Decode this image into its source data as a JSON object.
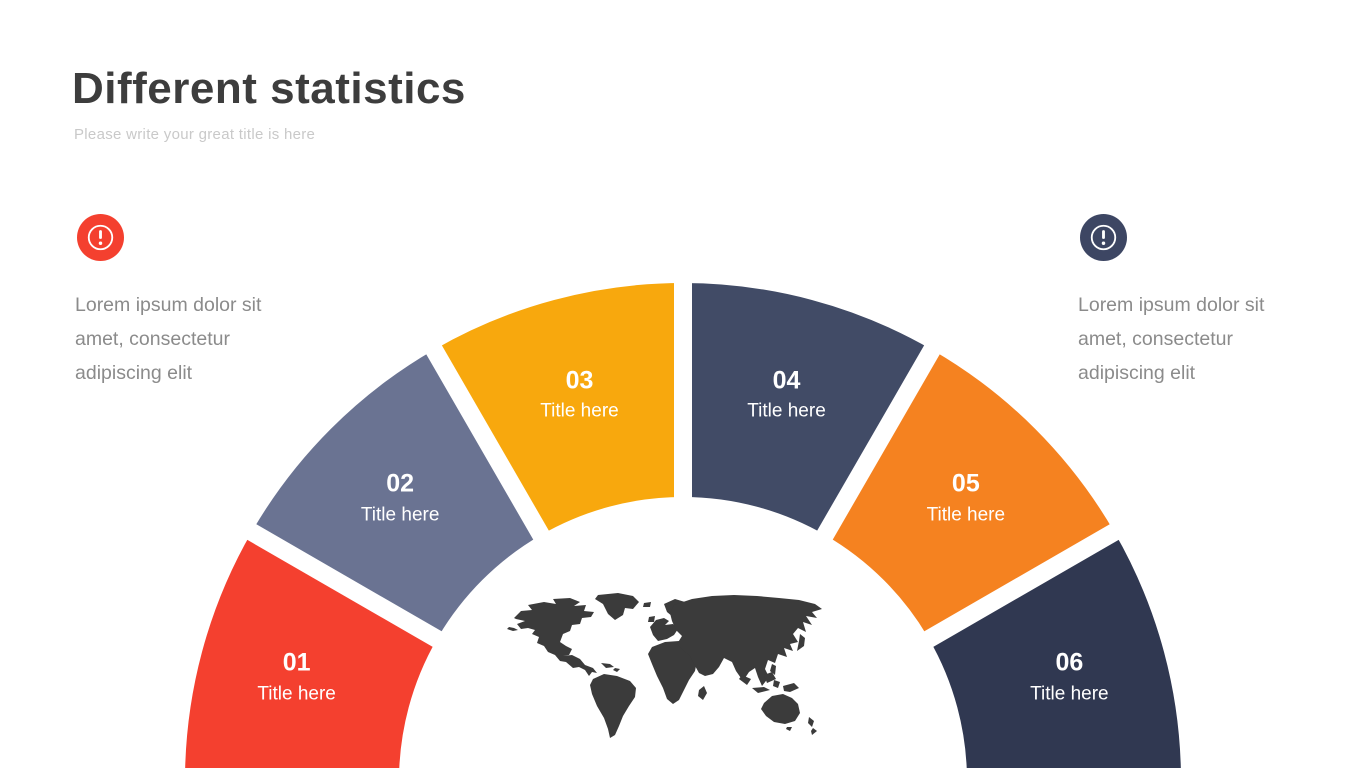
{
  "header": {
    "title": "Different statistics",
    "subtitle": "Please write your great title is here"
  },
  "notes": [
    {
      "side": "left",
      "icon": "alert-icon",
      "icon_color": "#F4402F",
      "lines": [
        "Lorem ipsum dolor sit",
        "amet, consectetur",
        "adipiscing elit"
      ]
    },
    {
      "side": "right",
      "icon": "alert-icon",
      "icon_color": "#3D4663",
      "lines": [
        "Lorem ipsum dolor sit",
        "amet, consectetur",
        "adipiscing elit"
      ]
    }
  ],
  "chart_data": {
    "type": "pie",
    "variant": "semicircle-fan-half-donut",
    "equal_segments": true,
    "segment_angle_deg": 30,
    "segments": [
      {
        "number": "01",
        "label": "Title here",
        "color": "#F4402F"
      },
      {
        "number": "02",
        "label": "Title here",
        "color": "#6A7392"
      },
      {
        "number": "03",
        "label": "Title here",
        "color": "#F8A80D"
      },
      {
        "number": "04",
        "label": "Title here",
        "color": "#414B66"
      },
      {
        "number": "05",
        "label": "Title here",
        "color": "#F58220"
      },
      {
        "number": "06",
        "label": "Title here",
        "color": "#303851"
      }
    ],
    "center_graphic": "world-map-silhouette",
    "map_color": "#3B3B3B",
    "gap_color": "#FFFFFF",
    "legend": "none",
    "title": ""
  }
}
